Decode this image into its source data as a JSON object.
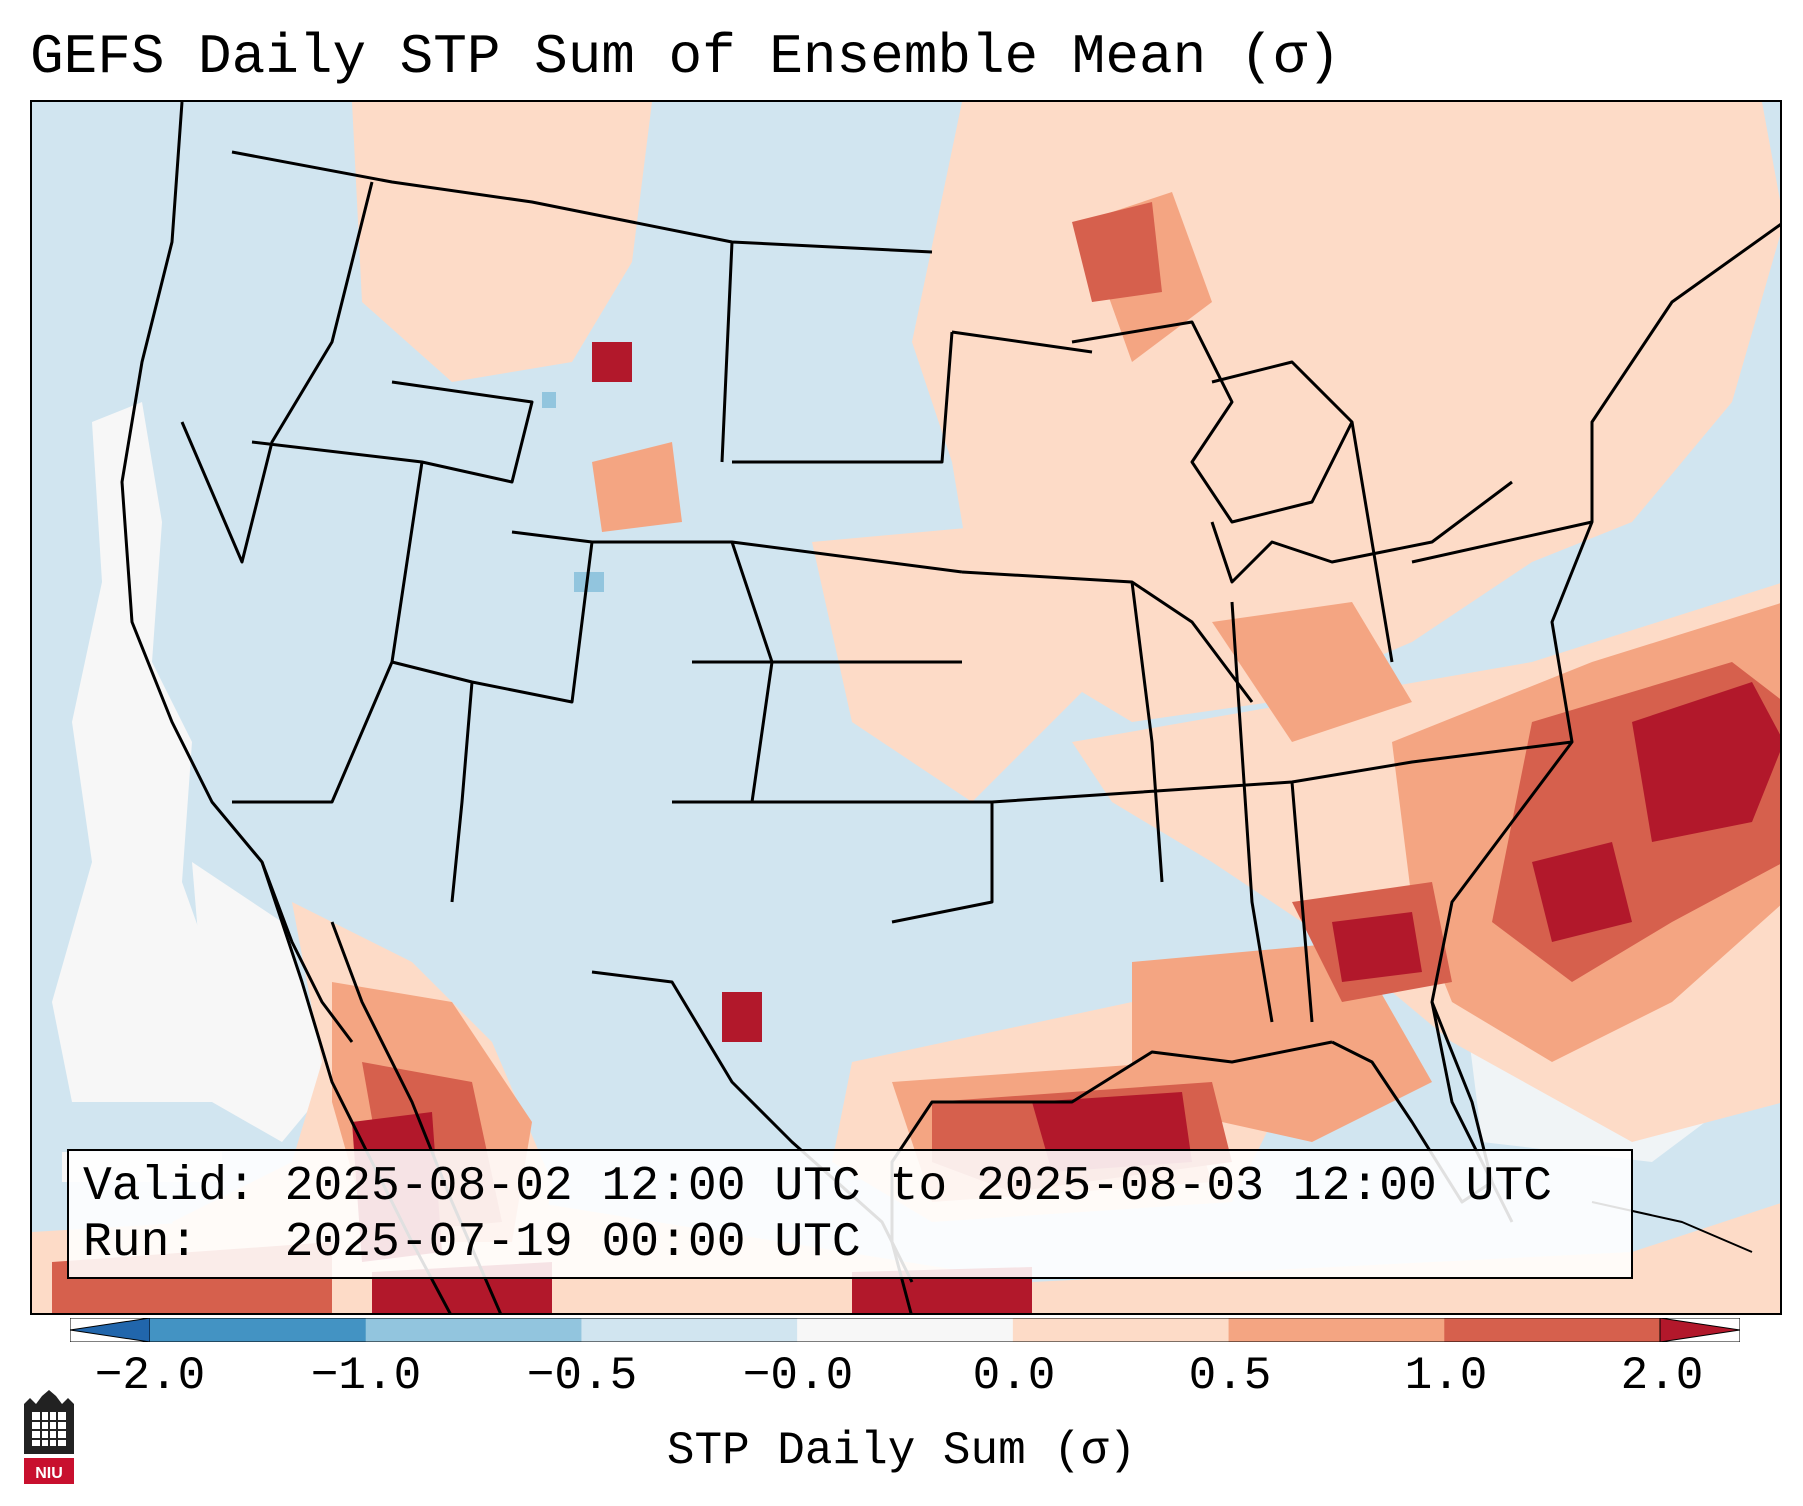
{
  "title": "GEFS Daily STP Sum of Ensemble Mean (σ)",
  "valid_line": "Valid: 2025-08-02 12:00 UTC to 2025-08-03 12:00 UTC",
  "run_line": "Run:   2025-07-19 00:00 UTC",
  "colorbar": {
    "label": "STP Daily Sum (σ)",
    "ticks": [
      "−2.0",
      "−1.0",
      "−0.5",
      "−0.0",
      "0.0",
      "0.5",
      "1.0",
      "2.0"
    ],
    "colors": [
      "#2166ac",
      "#4393c3",
      "#92c5de",
      "#d1e5f0",
      "#f7f7f7",
      "#fddbc7",
      "#f4a582",
      "#d6604d",
      "#b2182b"
    ]
  },
  "logo": {
    "text": "NIU"
  },
  "map": {
    "background_color": "#d1e5f0",
    "land_border_color": "#000000",
    "regions": [
      {
        "name": "northern-plains-light-positive",
        "level": "0.0 to 0.5"
      },
      {
        "name": "great-lakes-ohio-valley-positive",
        "level": "0.0 to 1.0"
      },
      {
        "name": "southeast-coast-strong-positive",
        "level": "1.0 to 2.0"
      },
      {
        "name": "gulf-coast-strong-positive",
        "level": "1.0 to 2.0"
      },
      {
        "name": "western-mexico-strong-positive",
        "level": "1.0 to 2.0"
      },
      {
        "name": "pacific-neutral-white",
        "level": "-0.0 to 0.0"
      }
    ]
  }
}
